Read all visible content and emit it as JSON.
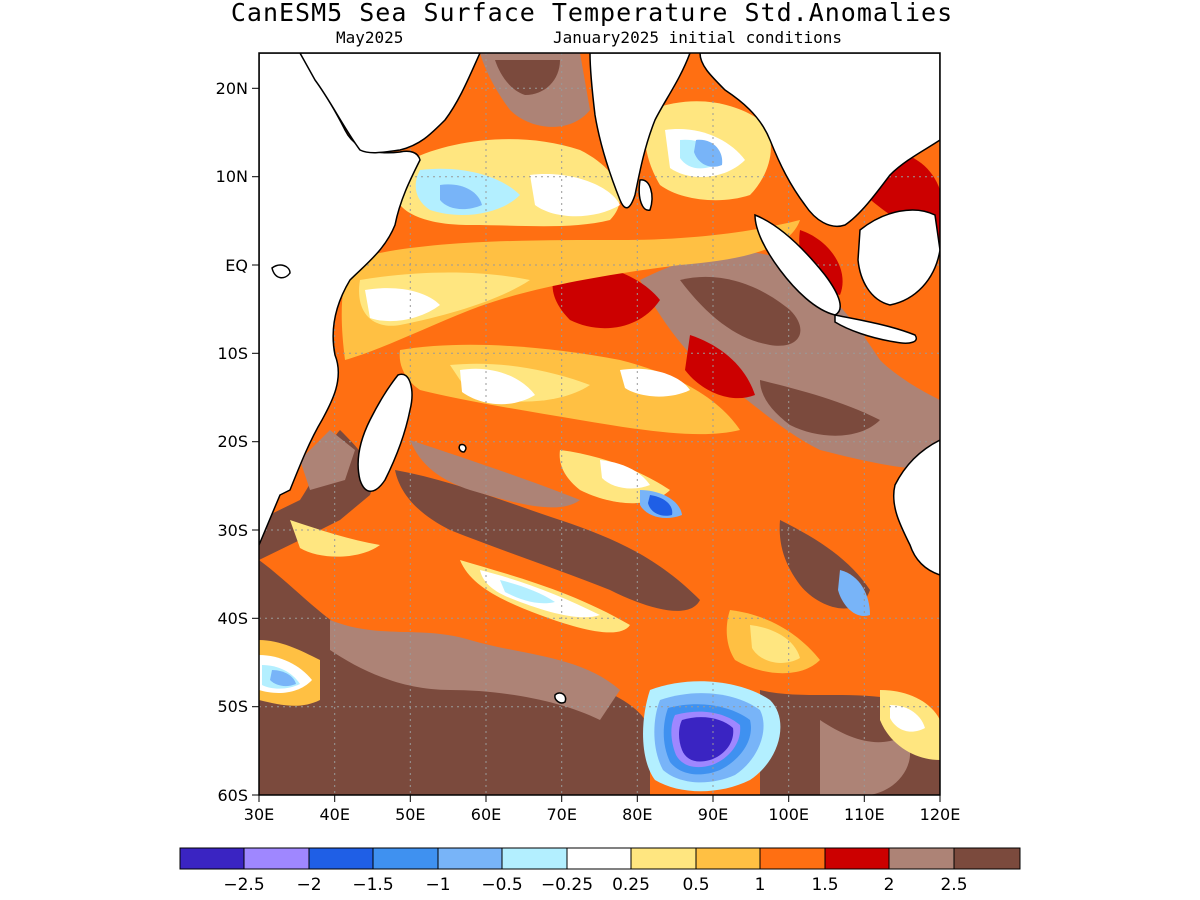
{
  "title": "CanESM5 Sea Surface Temperature Std.Anomalies",
  "subtitle_left": "May2025",
  "subtitle_right": "January2025 initial conditions",
  "map": {
    "lon_range": [
      30,
      120
    ],
    "lat_range": [
      -60,
      24
    ],
    "lon_ticks": [
      {
        "value": 30,
        "label": "30E"
      },
      {
        "value": 40,
        "label": "40E"
      },
      {
        "value": 50,
        "label": "50E"
      },
      {
        "value": 60,
        "label": "60E"
      },
      {
        "value": 70,
        "label": "70E"
      },
      {
        "value": 80,
        "label": "80E"
      },
      {
        "value": 90,
        "label": "90E"
      },
      {
        "value": 100,
        "label": "100E"
      },
      {
        "value": 110,
        "label": "110E"
      },
      {
        "value": 120,
        "label": "120E"
      }
    ],
    "lat_ticks": [
      {
        "value": 20,
        "label": "20N"
      },
      {
        "value": 10,
        "label": "10N"
      },
      {
        "value": 0,
        "label": "EQ"
      },
      {
        "value": -10,
        "label": "10S"
      },
      {
        "value": -20,
        "label": "20S"
      },
      {
        "value": -30,
        "label": "30S"
      },
      {
        "value": -40,
        "label": "40S"
      },
      {
        "value": -50,
        "label": "50S"
      },
      {
        "value": -60,
        "label": "60S"
      }
    ],
    "grid": true,
    "land_color": "#ffffff",
    "coastline_color": "#000000"
  },
  "colorbar": {
    "colors": [
      "#3a24c2",
      "#9f87ff",
      "#1f5fe6",
      "#3f91f0",
      "#78b4f8",
      "#b3efff",
      "#ffffff",
      "#ffe680",
      "#ffc043",
      "#ff6f12",
      "#cc0000",
      "#ad8376",
      "#7b4a3d"
    ],
    "labels": [
      "−2.5",
      "−2",
      "−1.5",
      "−1",
      "−0.5",
      "−0.25",
      "0.25",
      "0.5",
      "1",
      "1.5",
      "2",
      "2.5"
    ]
  }
}
